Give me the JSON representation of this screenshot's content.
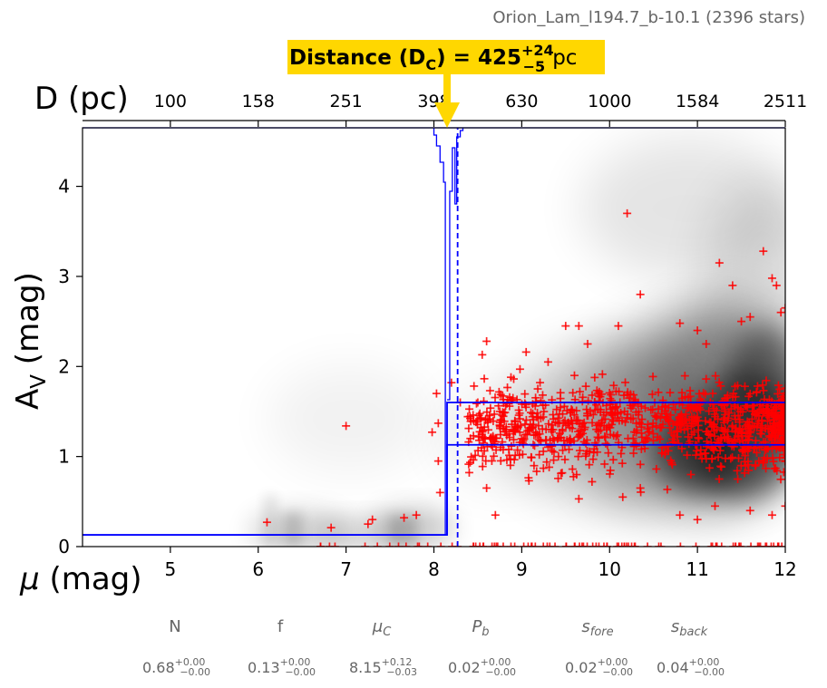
{
  "chart_data": {
    "type": "scatter",
    "title": "Orion_Lam_l194.7_b-10.1 (2396 stars)",
    "annotation": {
      "label": "Distance (D",
      "sub": "C",
      "eq": ") = 425",
      "sup": "+24",
      "low": "−5",
      "unit": "pc",
      "bg_color": "#FFD700",
      "arrow_x_mu": 8.15
    },
    "top_axis": {
      "title": "D (pc)",
      "ticks": [
        {
          "mu": 5,
          "label": "100"
        },
        {
          "mu": 6,
          "label": "158"
        },
        {
          "mu": 7,
          "label": "251"
        },
        {
          "mu": 8,
          "label": "398"
        },
        {
          "mu": 9,
          "label": "630"
        },
        {
          "mu": 10,
          "label": "1000"
        },
        {
          "mu": 11,
          "label": "1584"
        },
        {
          "mu": 12,
          "label": "2511"
        }
      ]
    },
    "x_axis": {
      "label_symbol": "μ",
      "label_rest": " (mag)",
      "lim": [
        4,
        12
      ],
      "ticks": [
        "5",
        "6",
        "7",
        "8",
        "9",
        "10",
        "11",
        "12"
      ]
    },
    "y_axis": {
      "label_main": "A",
      "label_sub": "V",
      "label_rest": " (mag)",
      "lim": [
        0,
        4.65
      ],
      "ticks": [
        "0",
        "1",
        "2",
        "3",
        "4"
      ]
    },
    "model": {
      "color": "#0000ff",
      "foreground_av": 0.13,
      "cloud_distance_mu": 8.15,
      "cloud_mu_upper": 8.27,
      "background_av_upper": 1.6,
      "background_av_lower": 1.13,
      "histogram_top_av": 4.65
    },
    "stars_color": "#ff0000",
    "stars_sample": [
      [
        7.0,
        1.34
      ],
      [
        7.98,
        1.27
      ],
      [
        6.1,
        0.27
      ],
      [
        6.83,
        0.21
      ],
      [
        7.25,
        0.25
      ],
      [
        7.3,
        0.3
      ],
      [
        7.66,
        0.32
      ],
      [
        7.8,
        0.35
      ],
      [
        8.03,
        1.7
      ],
      [
        8.05,
        1.37
      ],
      [
        8.05,
        0.95
      ],
      [
        8.07,
        0.6
      ],
      [
        8.2,
        1.82
      ],
      [
        8.3,
        1.6
      ],
      [
        8.5,
        1.6
      ],
      [
        8.55,
        2.13
      ],
      [
        8.6,
        2.28
      ],
      [
        8.7,
        0.35
      ],
      [
        8.6,
        0.65
      ],
      [
        8.9,
        1.65
      ],
      [
        9.05,
        2.16
      ],
      [
        9.3,
        2.05
      ],
      [
        9.5,
        2.45
      ],
      [
        9.65,
        2.45
      ],
      [
        9.75,
        2.25
      ],
      [
        9.6,
        1.9
      ],
      [
        9.8,
        0.72
      ],
      [
        10.1,
        2.45
      ],
      [
        10.2,
        3.7
      ],
      [
        10.35,
        2.8
      ],
      [
        10.6,
        1.55
      ],
      [
        10.8,
        2.48
      ],
      [
        11.0,
        2.4
      ],
      [
        11.1,
        2.25
      ],
      [
        11.25,
        3.15
      ],
      [
        11.4,
        2.9
      ],
      [
        11.5,
        2.5
      ],
      [
        11.6,
        2.55
      ],
      [
        11.75,
        3.28
      ],
      [
        11.85,
        2.98
      ],
      [
        11.9,
        2.9
      ],
      [
        11.95,
        2.6
      ],
      [
        12.0,
        2.65
      ],
      [
        9.65,
        0.53
      ],
      [
        10.15,
        0.55
      ],
      [
        10.35,
        0.65
      ],
      [
        10.8,
        0.35
      ],
      [
        11.0,
        0.3
      ],
      [
        11.2,
        0.45
      ],
      [
        11.6,
        0.4
      ],
      [
        11.85,
        0.35
      ],
      [
        12.0,
        0.45
      ]
    ],
    "params": [
      {
        "name": "N",
        "value": "0.68",
        "sup": "+0.00",
        "sub": "−0.00"
      },
      {
        "name": "f",
        "value": "0.13",
        "sup": "+0.00",
        "sub": "−0.00"
      },
      {
        "name": "μ",
        "name_sub": "C",
        "value": "8.15",
        "sup": "+0.12",
        "sub": "−0.03"
      },
      {
        "name": "P",
        "name_sub": "b",
        "value": "0.02",
        "sup": "+0.00",
        "sub": "−0.00"
      },
      {
        "name": "s",
        "name_sub": "fore",
        "value": "0.02",
        "sup": "+0.00",
        "sub": "−0.00"
      },
      {
        "name": "s",
        "name_sub": "back",
        "value": "0.04",
        "sup": "+0.00",
        "sub": "−0.00"
      }
    ]
  }
}
